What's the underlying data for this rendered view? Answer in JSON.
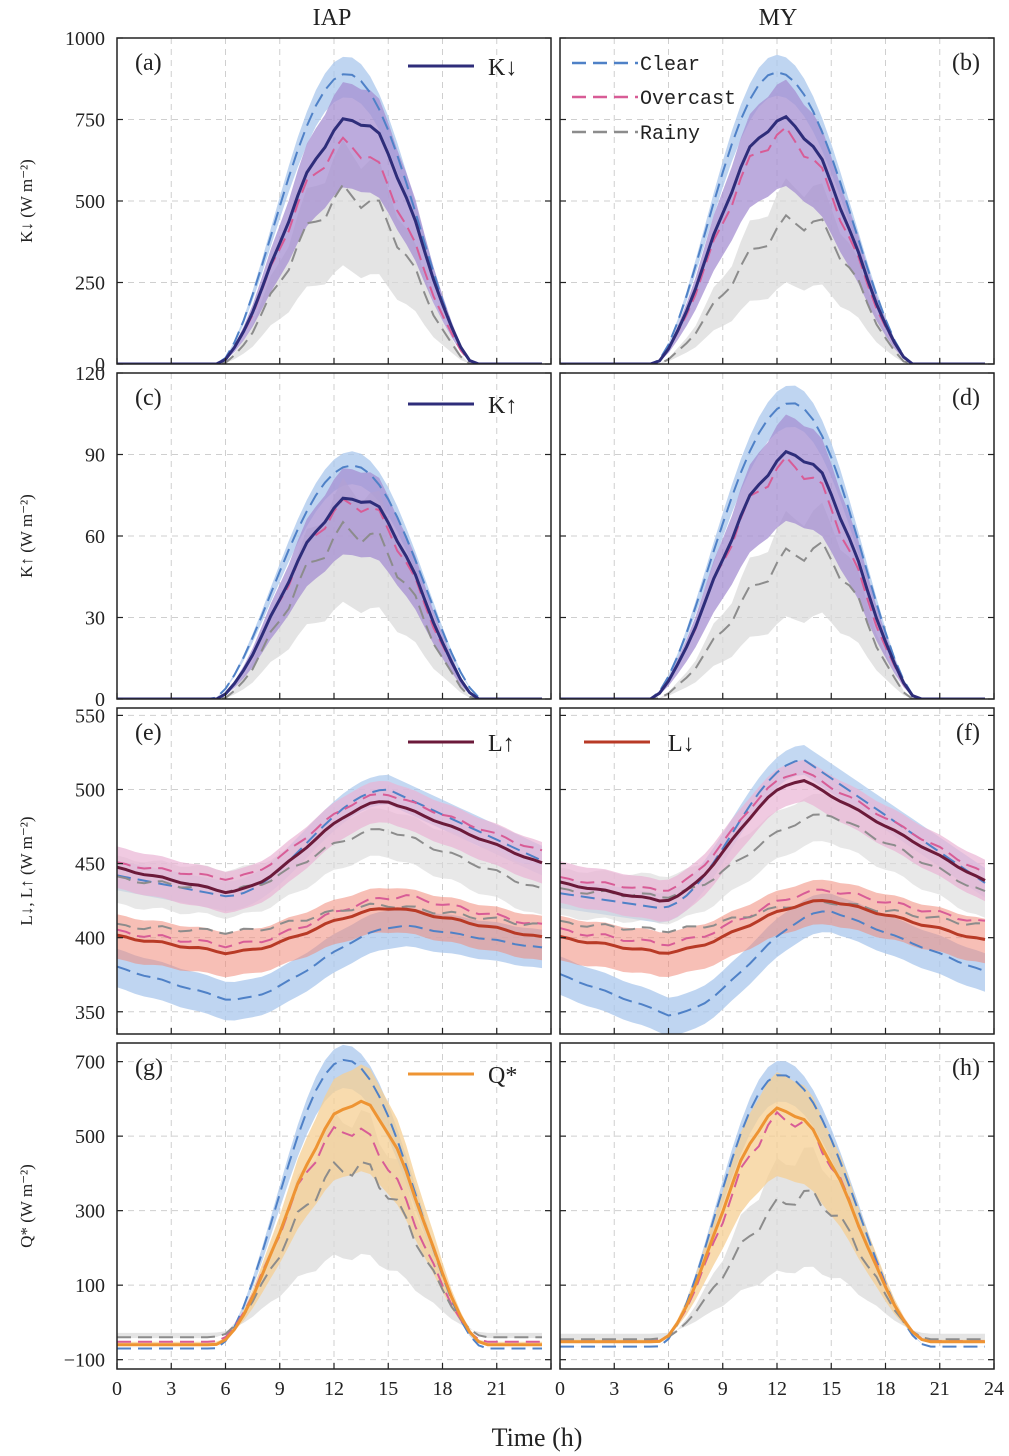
{
  "figure": {
    "col_titles": [
      "IAP",
      "MY"
    ],
    "xlabel": "Time (h)",
    "xticks": [
      0,
      3,
      6,
      9,
      12,
      15,
      18,
      21
    ],
    "xticks_last": [
      0,
      3,
      6,
      9,
      12,
      15,
      18,
      21,
      24
    ],
    "legend": {
      "clear": "Clear",
      "overcast": "Overcast",
      "rainy": "Rainy"
    },
    "colors": {
      "clear": "#4f81c7",
      "overcast": "#d85c96",
      "rainy": "#8c8c8c",
      "kdown": "#2e2d7a",
      "lup": "#6b1a3a",
      "ldown": "#b83a26",
      "qstar": "#ee9433",
      "band_clear": "#a9c7ec",
      "band_overcast": "#e9b3d4",
      "band_rainy": "#d9d9d9",
      "band_mean_purple": "#a58fd2",
      "band_mean_orange": "#f6cf93",
      "band_mean_red": "#f08a7a"
    }
  },
  "rows": [
    {
      "ylabel": "K↓ (W m⁻²)",
      "yticks": [
        "1000",
        "750",
        "500",
        "250",
        "0"
      ],
      "legend_label": "K↓",
      "panels": [
        "(a)",
        "(b)"
      ]
    },
    {
      "ylabel": "K↑ (W m⁻²)",
      "yticks": [
        "120",
        "90",
        "60",
        "30",
        "0"
      ],
      "legend_label": "K↑",
      "panels": [
        "(c)",
        "(d)"
      ]
    },
    {
      "ylabel": "L↓, L↑ (W m⁻²)",
      "yticks": [
        "550",
        "500",
        "450",
        "400",
        "350"
      ],
      "legend_label_a": "L↑",
      "legend_label_b": "L↓",
      "panels": [
        "(e)",
        "(f)"
      ]
    },
    {
      "ylabel": "Q* (W m⁻²)",
      "yticks": [
        "700",
        "500",
        "300",
        "100",
        "−100"
      ],
      "legend_label": "Q*",
      "panels": [
        "(g)",
        "(h)"
      ]
    }
  ],
  "chart_data": [
    {
      "type": "line",
      "title": "(a) IAP K↓",
      "ylabel": "K↓ (W m⁻²)",
      "ylim": [
        0,
        1000
      ],
      "xlim": [
        0,
        24
      ],
      "series": [
        {
          "name": "Clear",
          "peak": 890,
          "peak_hour": 12.7,
          "start": 5.6,
          "end": 19.8
        },
        {
          "name": "Overcast",
          "peak": 670,
          "peak_hour": 12.8,
          "start": 5.6,
          "end": 19.8
        },
        {
          "name": "Rainy",
          "peak": 520,
          "peak_hour": 13.0,
          "start": 5.8,
          "end": 19.6
        },
        {
          "name": "K↓",
          "peak": 750,
          "peak_hour": 13.2,
          "start": 5.6,
          "end": 19.8
        }
      ]
    },
    {
      "type": "line",
      "title": "(b) MY K↓",
      "ylabel": "K↓ (W m⁻²)",
      "ylim": [
        0,
        1000
      ],
      "xlim": [
        0,
        24
      ],
      "series": [
        {
          "name": "Clear",
          "peak": 895,
          "peak_hour": 12.0,
          "start": 5.2,
          "end": 19.5
        },
        {
          "name": "Overcast",
          "peak": 700,
          "peak_hour": 12.3,
          "start": 5.2,
          "end": 19.5
        },
        {
          "name": "Rainy",
          "peak": 440,
          "peak_hour": 13.5,
          "start": 5.4,
          "end": 19.3
        },
        {
          "name": "K↓",
          "peak": 745,
          "peak_hour": 12.3,
          "start": 5.2,
          "end": 19.5
        }
      ]
    },
    {
      "type": "line",
      "title": "(c) IAP K↑",
      "ylabel": "K↑ (W m⁻²)",
      "ylim": [
        0,
        120
      ],
      "xlim": [
        0,
        24
      ],
      "series": [
        {
          "name": "Clear",
          "peak": 86,
          "peak_hour": 13.0,
          "start": 5.3,
          "end": 20.2
        },
        {
          "name": "Overcast",
          "peak": 72,
          "peak_hour": 13.2,
          "start": 5.5,
          "end": 20.0
        },
        {
          "name": "Rainy",
          "peak": 62,
          "peak_hour": 13.2,
          "start": 5.8,
          "end": 19.8
        },
        {
          "name": "K↑",
          "peak": 74,
          "peak_hour": 13.3,
          "start": 5.5,
          "end": 20.0
        }
      ]
    },
    {
      "type": "line",
      "title": "(d) MY K↑",
      "ylabel": "K↑ (W m⁻²)",
      "ylim": [
        0,
        120
      ],
      "xlim": [
        0,
        24
      ],
      "series": [
        {
          "name": "Clear",
          "peak": 109,
          "peak_hour": 12.8,
          "start": 5.0,
          "end": 19.8
        },
        {
          "name": "Overcast",
          "peak": 86,
          "peak_hour": 12.8,
          "start": 5.0,
          "end": 19.8
        },
        {
          "name": "Rainy",
          "peak": 55,
          "peak_hour": 14.0,
          "start": 5.3,
          "end": 19.5
        },
        {
          "name": "K↑",
          "peak": 90,
          "peak_hour": 13.0,
          "start": 5.0,
          "end": 19.8
        }
      ]
    },
    {
      "type": "line",
      "title": "(e) IAP L↓, L↑",
      "ylabel": "L↓, L↑ (W m⁻²)",
      "ylim": [
        335,
        555
      ],
      "xlim": [
        0,
        24
      ],
      "series": [
        {
          "name": "L↑",
          "min": 431,
          "min_hour": 6.0,
          "max": 492,
          "max_hour": 15.0,
          "start": 447,
          "end": 450
        },
        {
          "name": "L↓",
          "min": 390,
          "min_hour": 6.0,
          "max": 420,
          "max_hour": 15.5,
          "start": 401,
          "end": 400
        },
        {
          "name": "Clear L↑",
          "min": 428,
          "min_hour": 6.0,
          "max": 500,
          "max_hour": 15.0,
          "start": 442,
          "end": 452
        },
        {
          "name": "Clear L↓",
          "min": 358,
          "min_hour": 6.2,
          "max": 408,
          "max_hour": 16.0,
          "start": 380,
          "end": 393
        },
        {
          "name": "Overcast L↑",
          "min": 440,
          "min_hour": 6.0,
          "max": 497,
          "max_hour": 15.0,
          "start": 450,
          "end": 458
        },
        {
          "name": "Overcast L↓",
          "min": 395,
          "min_hour": 6.0,
          "max": 428,
          "max_hour": 16.0,
          "start": 404,
          "end": 408
        },
        {
          "name": "Rainy L↑",
          "min": 432,
          "min_hour": 6.0,
          "max": 473,
          "max_hour": 15.0,
          "start": 440,
          "end": 432
        },
        {
          "name": "Rainy L↓",
          "min": 404,
          "min_hour": 6.0,
          "max": 422,
          "max_hour": 15.0,
          "start": 408,
          "end": 408
        }
      ]
    },
    {
      "type": "line",
      "title": "(f) MY L↓, L↑",
      "ylabel": "L↓, L↑ (W m⁻²)",
      "ylim": [
        335,
        555
      ],
      "xlim": [
        0,
        24
      ],
      "series": [
        {
          "name": "L↑",
          "min": 425,
          "min_hour": 5.5,
          "max": 506,
          "max_hour": 13.5,
          "start": 437,
          "end": 438
        },
        {
          "name": "L↓",
          "min": 390,
          "min_hour": 5.5,
          "max": 425,
          "max_hour": 15.0,
          "start": 400,
          "end": 398
        },
        {
          "name": "Clear L↑",
          "min": 420,
          "min_hour": 5.5,
          "max": 520,
          "max_hour": 13.5,
          "start": 430,
          "end": 437
        },
        {
          "name": "Clear L↓",
          "min": 348,
          "min_hour": 6.0,
          "max": 418,
          "max_hour": 15.0,
          "start": 375,
          "end": 377
        },
        {
          "name": "Overcast L↑",
          "min": 432,
          "min_hour": 5.5,
          "max": 512,
          "max_hour": 13.5,
          "start": 440,
          "end": 443
        },
        {
          "name": "Overcast L↓",
          "min": 396,
          "min_hour": 5.5,
          "max": 432,
          "max_hour": 15.0,
          "start": 405,
          "end": 410
        },
        {
          "name": "Rainy L↑",
          "min": 428,
          "min_hour": 5.5,
          "max": 483,
          "max_hour": 15.0,
          "start": 432,
          "end": 430
        },
        {
          "name": "Rainy L↓",
          "min": 405,
          "min_hour": 5.5,
          "max": 424,
          "max_hour": 15.0,
          "start": 410,
          "end": 408
        }
      ]
    },
    {
      "type": "line",
      "title": "(g) IAP Q*",
      "ylabel": "Q* (W m⁻²)",
      "ylim": [
        -125,
        750
      ],
      "xlim": [
        0,
        24
      ],
      "series": [
        {
          "name": "Clear",
          "peak": 705,
          "peak_hour": 12.6,
          "night": -70
        },
        {
          "name": "Overcast",
          "peak": 520,
          "peak_hour": 12.8,
          "night": -52
        },
        {
          "name": "Rainy",
          "peak": 420,
          "peak_hour": 13.0,
          "night": -40
        },
        {
          "name": "Q*",
          "peak": 590,
          "peak_hour": 13.3,
          "night": -60
        }
      ]
    },
    {
      "type": "line",
      "title": "(h) MY Q*",
      "ylabel": "Q* (W m⁻²)",
      "ylim": [
        -125,
        750
      ],
      "xlim": [
        0,
        24
      ],
      "series": [
        {
          "name": "Clear",
          "peak": 665,
          "peak_hour": 12.2,
          "night": -65
        },
        {
          "name": "Overcast",
          "peak": 550,
          "peak_hour": 12.5,
          "night": -50
        },
        {
          "name": "Rainy",
          "peak": 340,
          "peak_hour": 13.5,
          "night": -45
        },
        {
          "name": "Q*",
          "peak": 570,
          "peak_hour": 12.3,
          "night": -52
        }
      ]
    }
  ]
}
